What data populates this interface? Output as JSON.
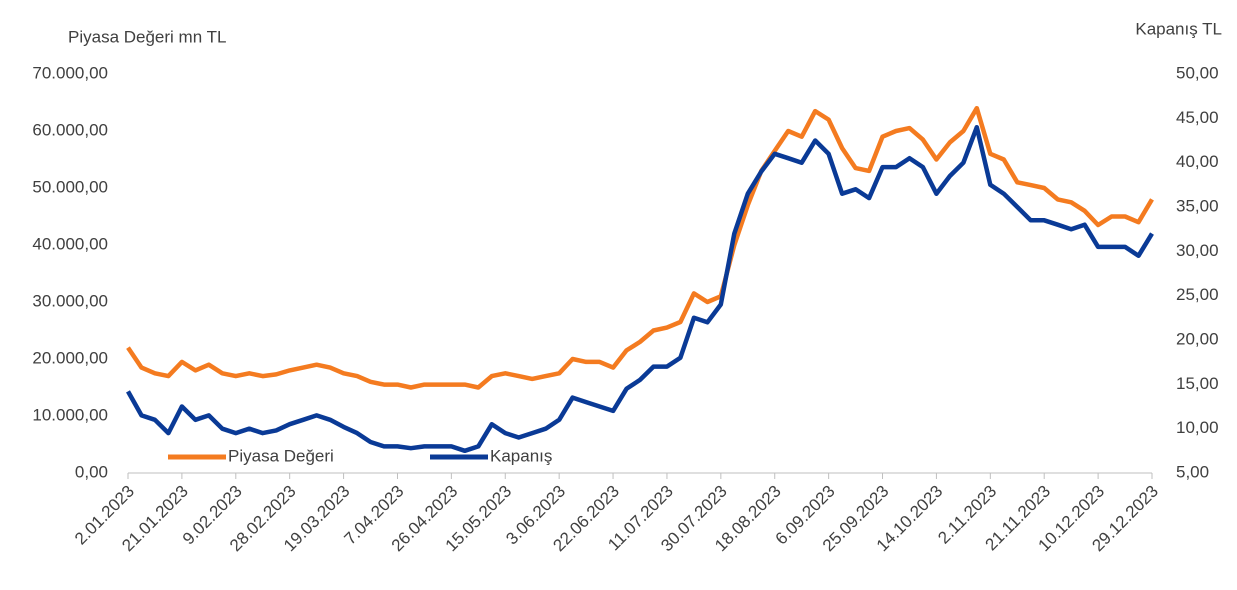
{
  "chart_data": {
    "type": "line",
    "y_axis_label": "Piyasa Değeri mn TL",
    "y2_axis_label": "Kapanış TL",
    "categories": [
      "2.01.2023",
      null,
      null,
      null,
      "21.01.2023",
      null,
      null,
      null,
      "9.02.2023",
      null,
      null,
      null,
      "28.02.2023",
      null,
      null,
      null,
      "19.03.2023",
      null,
      null,
      null,
      "7.04.2023",
      null,
      null,
      null,
      "26.04.2023",
      null,
      null,
      null,
      "15.05.2023",
      null,
      null,
      null,
      "3.06.2023",
      null,
      null,
      null,
      "22.06.2023",
      null,
      null,
      null,
      "11.07.2023",
      null,
      null,
      null,
      "30.07.2023",
      null,
      null,
      null,
      "18.08.2023",
      null,
      null,
      null,
      "6.09.2023",
      null,
      null,
      null,
      "25.09.2023",
      null,
      null,
      null,
      "14.10.2023",
      null,
      null,
      null,
      "2.11.2023",
      null,
      null,
      null,
      "21.11.2023",
      null,
      null,
      null,
      "10.12.2023",
      null,
      null,
      null,
      "29.12.2023"
    ],
    "series": [
      {
        "name": "Piyasa Değeri",
        "color": "#f47b20",
        "axis": "y",
        "values": [
          22000,
          18500,
          17500,
          17000,
          19500,
          18000,
          19000,
          17500,
          17000,
          17500,
          17000,
          17300,
          18000,
          18500,
          19000,
          18500,
          17500,
          17000,
          16000,
          15500,
          15500,
          15000,
          15500,
          15500,
          15500,
          15500,
          15000,
          17000,
          17500,
          17000,
          16500,
          17000,
          17500,
          20000,
          19500,
          19500,
          18500,
          21500,
          23000,
          25000,
          25500,
          26500,
          31500,
          30000,
          31000,
          40000,
          47000,
          53000,
          56500,
          60000,
          59000,
          63500,
          62000,
          57000,
          53500,
          53000,
          59000,
          60000,
          60500,
          58500,
          55000,
          58000,
          60000,
          64000,
          56000,
          55000,
          51000,
          50500,
          50000,
          48000,
          47500,
          46000,
          43500,
          45000,
          45000,
          44000,
          48000
        ]
      },
      {
        "name": "Kapanış",
        "color": "#0a3a96",
        "axis": "y2",
        "values": [
          14.2,
          11.5,
          11.0,
          9.5,
          12.5,
          11.0,
          11.5,
          10.0,
          9.5,
          10.0,
          9.5,
          9.8,
          10.5,
          11.0,
          11.5,
          11.0,
          10.2,
          9.5,
          8.5,
          8.0,
          8.0,
          7.8,
          8.0,
          8.0,
          8.0,
          7.5,
          8.0,
          10.5,
          9.5,
          9.0,
          9.5,
          10.0,
          11.0,
          13.5,
          13.0,
          12.5,
          12.0,
          14.5,
          15.5,
          17.0,
          17.0,
          18.0,
          22.5,
          22.0,
          24.0,
          32.0,
          36.5,
          39.0,
          41.0,
          40.5,
          40.0,
          42.5,
          41.0,
          36.5,
          37.0,
          36.0,
          39.5,
          39.5,
          40.5,
          39.5,
          36.5,
          38.5,
          40.0,
          44.0,
          37.5,
          36.5,
          35.0,
          33.5,
          33.5,
          33.0,
          32.5,
          33.0,
          30.5,
          30.5,
          30.5,
          29.5,
          32.0
        ]
      }
    ],
    "ylim": [
      0,
      70000
    ],
    "yticks": [
      {
        "value": 0,
        "label": "0,00"
      },
      {
        "value": 10000,
        "label": "10.000,00"
      },
      {
        "value": 20000,
        "label": "20.000,00"
      },
      {
        "value": 30000,
        "label": "30.000,00"
      },
      {
        "value": 40000,
        "label": "40.000,00"
      },
      {
        "value": 50000,
        "label": "50.000,00"
      },
      {
        "value": 60000,
        "label": "60.000,00"
      },
      {
        "value": 70000,
        "label": "70.000,00"
      }
    ],
    "y2lim": [
      5,
      50
    ],
    "y2ticks": [
      {
        "value": 5,
        "label": "5,00"
      },
      {
        "value": 10,
        "label": "10,00"
      },
      {
        "value": 15,
        "label": "15,00"
      },
      {
        "value": 20,
        "label": "20,00"
      },
      {
        "value": 25,
        "label": "25,00"
      },
      {
        "value": 30,
        "label": "30,00"
      },
      {
        "value": 35,
        "label": "35,00"
      },
      {
        "value": 40,
        "label": "40,00"
      },
      {
        "value": 45,
        "label": "45,00"
      },
      {
        "value": 50,
        "label": "50,00"
      }
    ],
    "legend": "bottom-left"
  }
}
